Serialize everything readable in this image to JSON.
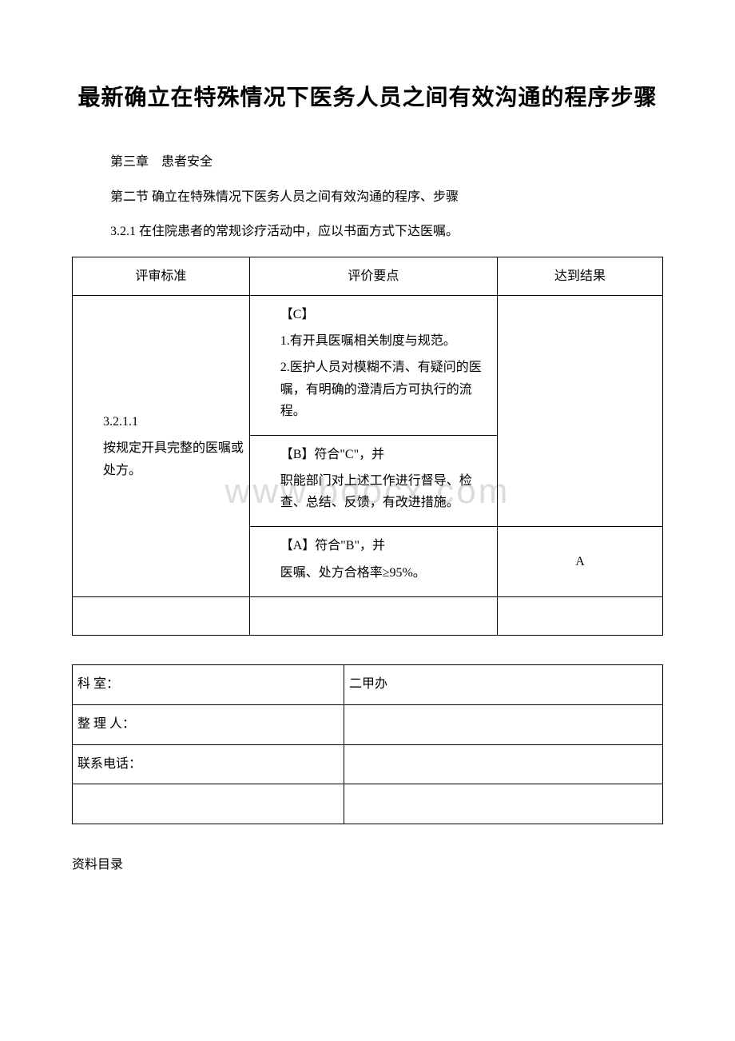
{
  "title": "最新确立在特殊情况下医务人员之间有效沟通的程序步骤",
  "chapter": "第三章　患者安全",
  "section": "第二节 确立在特殊情况下医务人员之间有效沟通的程序、步骤",
  "subsection": "3.2.1 在住院患者的常规诊疗活动中，应以书面方式下达医嘱。",
  "table1": {
    "headers": [
      "评审标准",
      "评价要点",
      "达到结果"
    ],
    "row1_col1_id": "3.2.1.1",
    "row1_col1_desc": "按规定开具完整的医嘱或处方。",
    "row1_col2_c_label": "【C】",
    "row1_col2_c1": "1.有开具医嘱相关制度与规范。",
    "row1_col2_c2": "2.医护人员对模糊不清、有疑问的医嘱，有明确的澄清后方可执行的流程。",
    "row1_col2_b_label": "【B】符合\"C\"，并",
    "row1_col2_b1": "职能部门对上述工作进行督导、检查、总结、反馈，有改进措施。",
    "row1_col2_a_label": "【A】符合\"B\"，并",
    "row1_col2_a1": "医嘱、处方合格率≥95%。",
    "row1_col3": "A"
  },
  "table2": {
    "rows": [
      {
        "label": "科 室：",
        "value": "二甲办"
      },
      {
        "label": "整 理 人：",
        "value": ""
      },
      {
        "label": "联系电话：",
        "value": ""
      }
    ]
  },
  "bottom": "资料目录",
  "watermark": "www.bdocx.com",
  "colors": {
    "text": "#000000",
    "border": "#000000",
    "watermark": "#dcdcdc",
    "background": "#ffffff"
  },
  "fonts": {
    "title_size": 28,
    "body_size": 16,
    "watermark_size": 44
  }
}
